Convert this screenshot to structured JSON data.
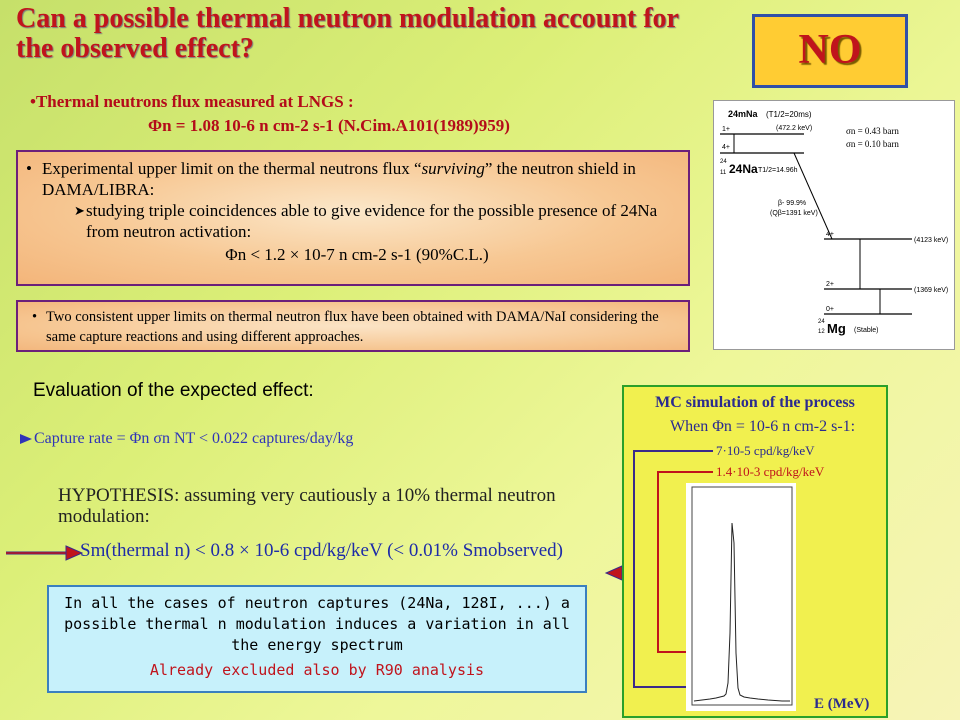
{
  "title": "Can a possible thermal neutron modulation account for the observed effect?",
  "answer": "NO",
  "flux": {
    "heading": "•Thermal neutrons flux measured at LNGS :",
    "value": "Φn = 1.08 10-6 n cm-2 s-1 (N.Cim.A101(1989)959)"
  },
  "experimental": {
    "line1_pre": "Experimental upper limit on the thermal neutrons flux “",
    "line1_em": "surviving",
    "line1_post": "” the neutron shield in DAMA/LIBRA:",
    "line2": "studying triple coincidences able to give evidence for the possible presence of 24Na from neutron activation:",
    "limit": "Φn < 1.2 × 10-7 n cm-2 s-1 (90%C.L.)"
  },
  "consistent_limits": "Two consistent upper limits on thermal neutron flux have been obtained with DAMA/NaI considering the same capture reactions and using different approaches.",
  "decay_scheme": {
    "iso_24m": "24mNa",
    "halflife_m": "(T1/2=20ms)",
    "level_1plus": "1+",
    "e_4722": "(472.2 keV)",
    "sigma1": "σn = 0.43 barn",
    "sigma2": "σn = 0.10 barn",
    "level_4plus_top": "4+",
    "iso_24na": "24Na",
    "mass_24": "24",
    "z_11": "11",
    "halflife_na": "T1/2=14.96h",
    "beta": "β- 99.9%",
    "qbeta": "(Qβ=1391 keV)",
    "level_4plus": "4+",
    "e_4123": "(4123 keV)",
    "level_2plus": "2+",
    "e_1369": "(1369 keV)",
    "level_0plus": "0+",
    "mg": "Mg",
    "z_12": "12",
    "stable": "(Stable)"
  },
  "evaluation_heading": "Evaluation of the expected effect:",
  "capture_rate": "Capture rate = Φn σn NT < 0.022 captures/day/kg",
  "hypothesis": "HYPOTHESIS: assuming very cautiously a 10% thermal neutron modulation:",
  "sm_line": "Sm(thermal n) < 0.8 × 10-6 cpd/kg/keV (< 0.01% Smobserved)",
  "cases": {
    "line1": "In all the cases of neutron captures (24Na, 128I, ...) a possible thermal n modulation induces a variation in all the energy spectrum",
    "line2": "Already excluded also by R90 analysis"
  },
  "mc": {
    "title": "MC simulation of the process",
    "when": "When Φn = 10-6 n cm-2 s-1:",
    "label1": "7·10-5 cpd/kg/keV",
    "label2": "1.4·10-3 cpd/kg/keV",
    "xlabel": "E (MeV)"
  },
  "colors": {
    "title": "#c0141c",
    "answer_bg": "#ffcc33",
    "mc_bg": "#f1f04f",
    "cases_bg": "#c7f1fb"
  }
}
